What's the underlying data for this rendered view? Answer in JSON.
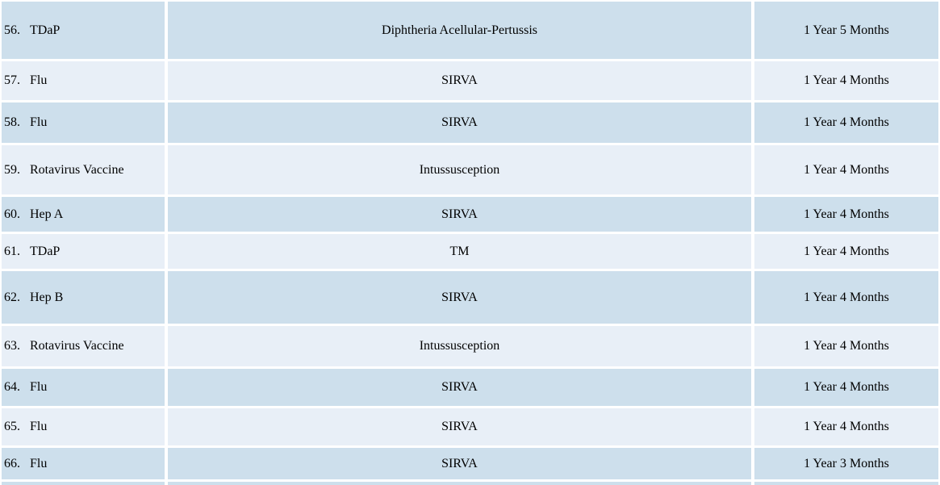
{
  "table": {
    "description": "Vaccine injury case list (rows 56-66)",
    "columns": [
      {
        "key": "vaccine",
        "label": ""
      },
      {
        "key": "injury",
        "label": ""
      },
      {
        "key": "duration",
        "label": ""
      }
    ],
    "rows": [
      {
        "num": "56.",
        "vaccine": "TDaP",
        "injury": "Diphtheria Acellular-Pertussis",
        "duration": "1 Year 5 Months"
      },
      {
        "num": "57.",
        "vaccine": "Flu",
        "injury": "SIRVA",
        "duration": "1 Year 4 Months"
      },
      {
        "num": "58.",
        "vaccine": "Flu",
        "injury": "SIRVA",
        "duration": "1 Year 4 Months"
      },
      {
        "num": "59.",
        "vaccine": "Rotavirus Vaccine",
        "injury": "Intussusception",
        "duration": "1 Year 4 Months"
      },
      {
        "num": "60.",
        "vaccine": "Hep A",
        "injury": "SIRVA",
        "duration": "1 Year 4 Months"
      },
      {
        "num": "61.",
        "vaccine": "TDaP",
        "injury": "TM",
        "duration": "1 Year 4 Months"
      },
      {
        "num": "62.",
        "vaccine": "Hep B",
        "injury": "SIRVA",
        "duration": "1 Year 4 Months"
      },
      {
        "num": "63.",
        "vaccine": "Rotavirus Vaccine",
        "injury": "Intussusception",
        "duration": "1 Year 4 Months"
      },
      {
        "num": "64.",
        "vaccine": "Flu",
        "injury": "SIRVA",
        "duration": "1 Year 4 Months"
      },
      {
        "num": "65.",
        "vaccine": "Flu",
        "injury": "SIRVA",
        "duration": "1 Year 4 Months"
      },
      {
        "num": "66.",
        "vaccine": "Flu",
        "injury": "SIRVA",
        "duration": "1 Year 3 Months"
      }
    ]
  },
  "colors": {
    "row_dark": "#cddfec",
    "row_light": "#e8eff7",
    "divider": "#ffffff",
    "text": "#000000"
  }
}
